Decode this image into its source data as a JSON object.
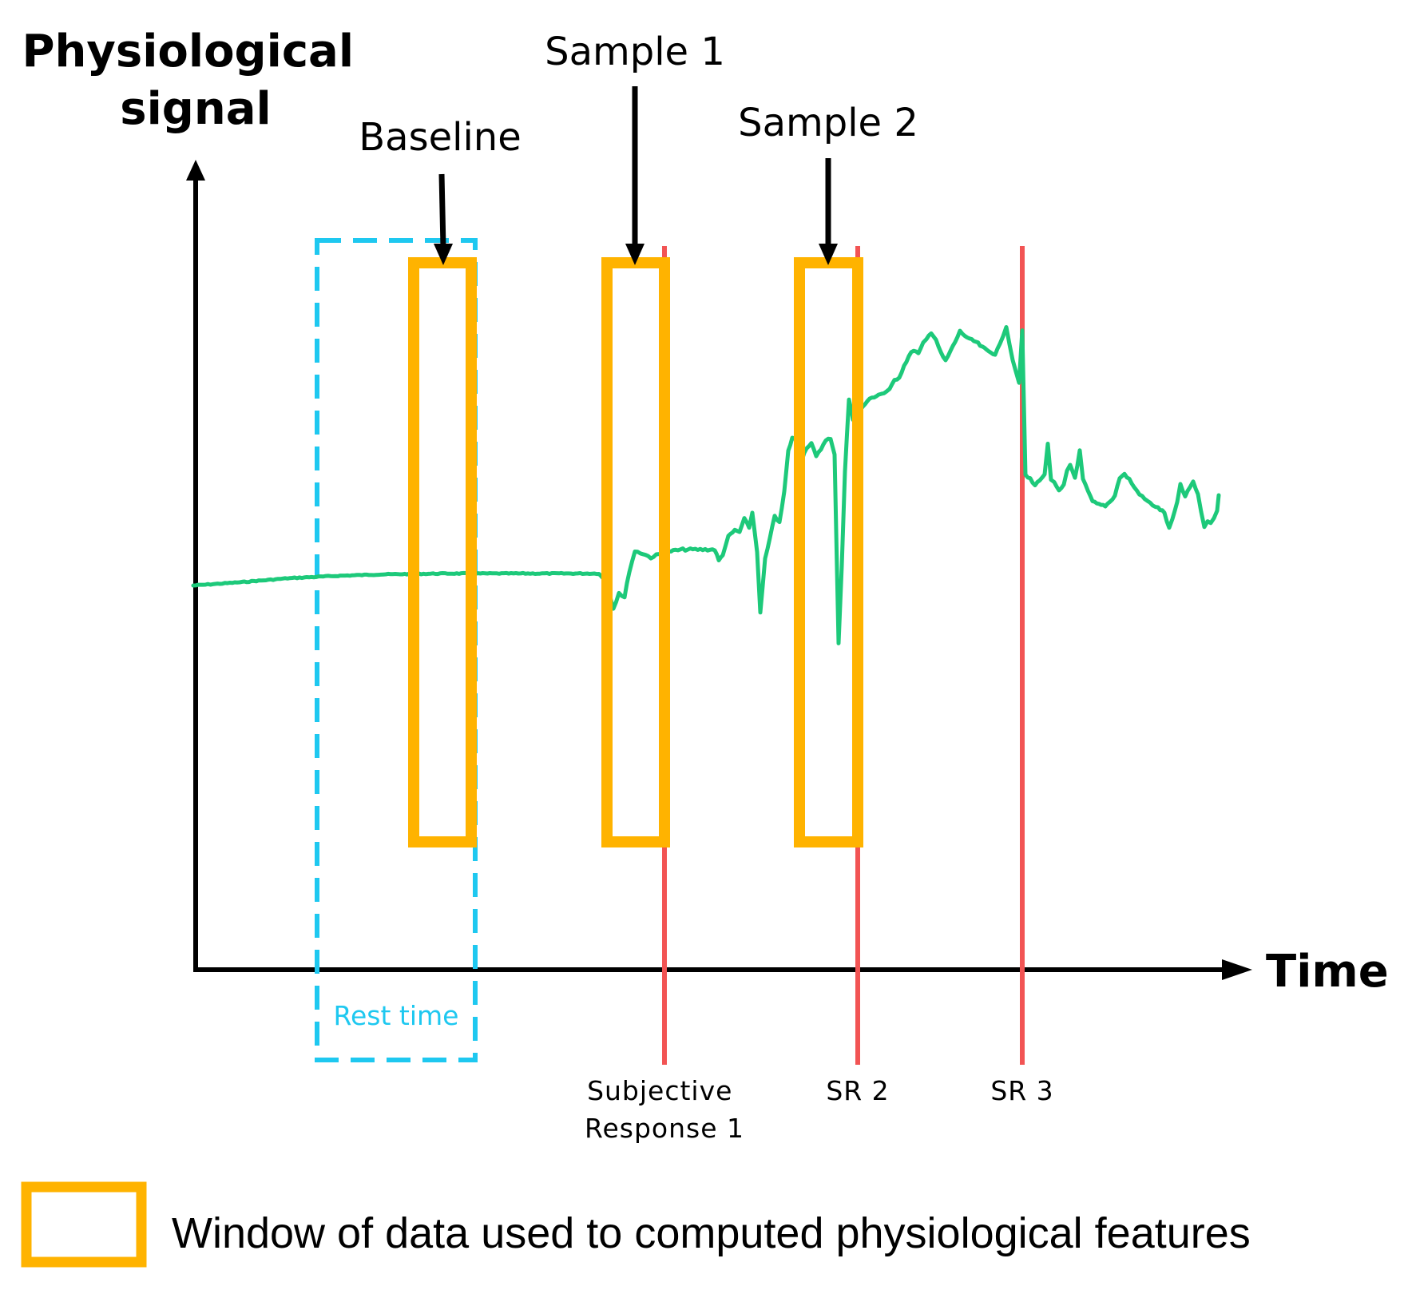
{
  "axes": {
    "y_label_lines": [
      "Physiological",
      "signal"
    ],
    "x_label": "Time"
  },
  "callouts": {
    "baseline": "Baseline",
    "sample1": "Sample 1",
    "sample2": "Sample 2"
  },
  "rest_time_label": "Rest time",
  "subjective_responses": {
    "sr1_lines": [
      "Subjective",
      "Response 1"
    ],
    "sr2": "SR 2",
    "sr3": "SR 3"
  },
  "legend": {
    "window_label": "Window of data used to computed physiological features"
  },
  "colors": {
    "signal": "#1dc97a",
    "window": "#ffb300",
    "rest_box": "#1ec8f0",
    "response_line": "#f25454",
    "axis": "#000000"
  }
}
